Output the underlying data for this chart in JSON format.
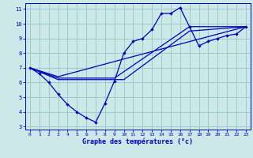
{
  "xlabel": "Graphe des températures (°c)",
  "bg_color": "#cce8e8",
  "grid_color": "#99cccc",
  "line_color": "#0000bb",
  "xlim": [
    -0.5,
    23.5
  ],
  "ylim": [
    2.8,
    11.4
  ],
  "yticks": [
    3,
    4,
    5,
    6,
    7,
    8,
    9,
    10,
    11
  ],
  "xticks": [
    0,
    1,
    2,
    3,
    4,
    5,
    6,
    7,
    8,
    9,
    10,
    11,
    12,
    13,
    14,
    15,
    16,
    17,
    18,
    19,
    20,
    21,
    22,
    23
  ],
  "curve_main_x": [
    0,
    1,
    2,
    3,
    4,
    5,
    6,
    7,
    8,
    9,
    10,
    11,
    12,
    13,
    14,
    15,
    16,
    17,
    18,
    19,
    20,
    21,
    22,
    23
  ],
  "curve_main_y": [
    7.0,
    6.6,
    6.0,
    5.2,
    4.5,
    4.0,
    3.6,
    3.3,
    4.6,
    6.1,
    8.0,
    8.8,
    9.0,
    9.6,
    10.7,
    10.7,
    11.1,
    9.8,
    8.5,
    8.8,
    9.0,
    9.2,
    9.3,
    9.8
  ],
  "line1_x": [
    0,
    3,
    10,
    23
  ],
  "line1_y": [
    7.0,
    6.4,
    7.6,
    9.8
  ],
  "line2_x": [
    0,
    3,
    10,
    17,
    23
  ],
  "line2_y": [
    7.0,
    6.2,
    6.2,
    9.5,
    9.8
  ],
  "line3_x": [
    0,
    3,
    9,
    17,
    23
  ],
  "line3_y": [
    7.0,
    6.3,
    6.3,
    9.8,
    9.8
  ]
}
